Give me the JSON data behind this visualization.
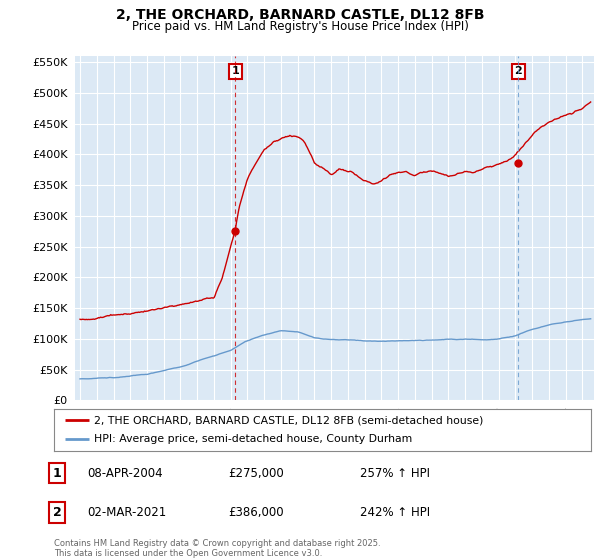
{
  "title": "2, THE ORCHARD, BARNARD CASTLE, DL12 8FB",
  "subtitle": "Price paid vs. HM Land Registry's House Price Index (HPI)",
  "legend_line1": "2, THE ORCHARD, BARNARD CASTLE, DL12 8FB (semi-detached house)",
  "legend_line2": "HPI: Average price, semi-detached house, County Durham",
  "annotation1_date": "08-APR-2004",
  "annotation1_price": "£275,000",
  "annotation1_hpi": "257% ↑ HPI",
  "annotation2_date": "02-MAR-2021",
  "annotation2_price": "£386,000",
  "annotation2_hpi": "242% ↑ HPI",
  "footer": "Contains HM Land Registry data © Crown copyright and database right 2025.\nThis data is licensed under the Open Government Licence v3.0.",
  "red_color": "#cc0000",
  "blue_color": "#6699cc",
  "plot_bg_color": "#dce9f5",
  "background_color": "#ffffff",
  "grid_color": "#ffffff",
  "ylim": [
    0,
    560000
  ],
  "yticks": [
    0,
    50000,
    100000,
    150000,
    200000,
    250000,
    300000,
    350000,
    400000,
    450000,
    500000,
    550000
  ],
  "sale1_x": 2004.27,
  "sale1_y": 275000,
  "sale2_x": 2021.17,
  "sale2_y": 386000,
  "xmin": 1994.7,
  "xmax": 2025.7
}
